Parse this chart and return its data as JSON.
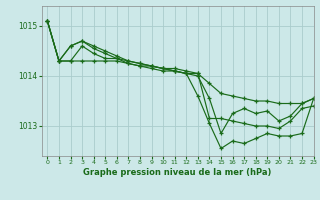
{
  "title": "Graphe pression niveau de la mer (hPa)",
  "bg_color": "#cce8e8",
  "grid_color": "#aacccc",
  "line_color": "#1a6b1a",
  "xlim": [
    -0.5,
    23
  ],
  "ylim": [
    1012.4,
    1015.4
  ],
  "yticks": [
    1013,
    1014,
    1015
  ],
  "xticks": [
    0,
    1,
    2,
    3,
    4,
    5,
    6,
    7,
    8,
    9,
    10,
    11,
    12,
    13,
    14,
    15,
    16,
    17,
    18,
    19,
    20,
    21,
    22,
    23
  ],
  "series": [
    [
      1015.1,
      1014.3,
      1014.3,
      1014.3,
      1014.3,
      1014.3,
      1014.3,
      1014.25,
      1014.2,
      1014.2,
      1014.15,
      1014.15,
      1014.1,
      1014.05,
      1013.15,
      1013.15,
      1013.1,
      1013.05,
      1013.0,
      1013.0,
      1012.95,
      1013.1,
      1013.35,
      1013.4
    ],
    [
      1015.1,
      1014.3,
      1014.6,
      1014.7,
      1014.55,
      1014.45,
      1014.35,
      1014.3,
      1014.25,
      1014.2,
      1014.15,
      1014.1,
      1014.05,
      1014.05,
      1013.85,
      1013.65,
      1013.6,
      1013.55,
      1013.5,
      1013.5,
      1013.45,
      1013.45,
      1013.45,
      1013.55
    ],
    [
      1015.1,
      1014.3,
      1014.6,
      1014.7,
      1014.6,
      1014.5,
      1014.4,
      1014.3,
      1014.25,
      1014.2,
      1014.15,
      1014.1,
      1014.05,
      1014.0,
      1013.55,
      1012.85,
      1013.25,
      1013.35,
      1013.25,
      1013.3,
      1013.1,
      1013.2,
      1013.45,
      1013.55
    ],
    [
      1015.1,
      1014.3,
      1014.3,
      1014.6,
      1014.45,
      1014.35,
      1014.35,
      1014.25,
      1014.2,
      1014.15,
      1014.1,
      1014.1,
      1014.05,
      1013.6,
      1013.05,
      1012.55,
      1012.7,
      1012.65,
      1012.75,
      1012.85,
      1012.8,
      1012.8,
      1012.85,
      1013.55
    ]
  ]
}
